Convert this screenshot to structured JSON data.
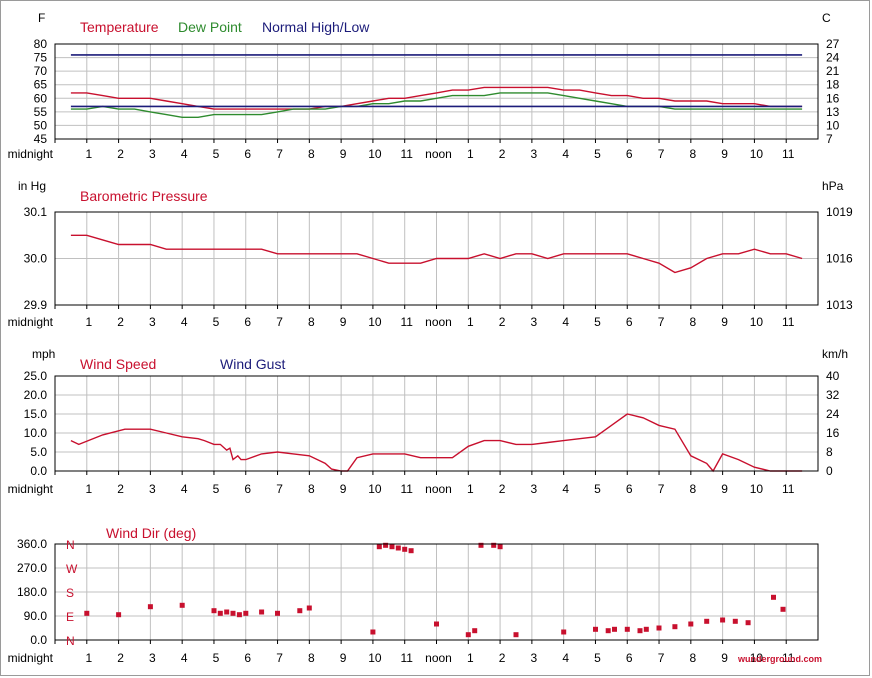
{
  "time_labels": [
    "midnight",
    "1",
    "2",
    "3",
    "4",
    "5",
    "6",
    "7",
    "8",
    "9",
    "10",
    "11",
    "noon",
    "1",
    "2",
    "3",
    "4",
    "5",
    "6",
    "7",
    "8",
    "9",
    "10",
    "11"
  ],
  "brand": "wunderground.com",
  "colors": {
    "red": "#c8102e",
    "green": "#2e8b2e",
    "navy": "#1c1c7a",
    "grid": "#c0c0c0",
    "axis": "#000000"
  },
  "chart_data": [
    {
      "type": "line",
      "left_unit": "F",
      "right_unit": "C",
      "yticks_left": [
        "80",
        "75",
        "70",
        "65",
        "60",
        "55",
        "50",
        "45"
      ],
      "yticks_right": [
        "27",
        "24",
        "21",
        "18",
        "16",
        "13",
        "10",
        "7"
      ],
      "legend": [
        "Temperature",
        "Dew Point",
        "Normal High/Low"
      ],
      "ylim": [
        45,
        80
      ],
      "x": [
        0.5,
        1,
        1.5,
        2,
        2.5,
        3,
        3.5,
        4,
        4.5,
        5,
        5.5,
        6,
        6.5,
        7,
        7.5,
        8,
        8.5,
        9,
        9.5,
        10,
        10.5,
        11,
        11.5,
        12,
        12.5,
        13,
        13.5,
        14,
        14.5,
        15,
        15.5,
        16,
        16.5,
        17,
        17.5,
        18,
        18.5,
        19,
        19.5,
        20,
        20.5,
        21,
        21.5,
        22,
        22.5,
        23,
        23.5
      ],
      "series": [
        {
          "name": "Temperature",
          "color": "#c8102e",
          "values": [
            62,
            62,
            61,
            60,
            60,
            60,
            59,
            58,
            57,
            56,
            56,
            56,
            56,
            56,
            56,
            56,
            57,
            57,
            58,
            59,
            60,
            60,
            61,
            62,
            63,
            63,
            64,
            64,
            64,
            64,
            64,
            63,
            63,
            62,
            61,
            61,
            60,
            60,
            59,
            59,
            59,
            58,
            58,
            58,
            57,
            57,
            57
          ]
        },
        {
          "name": "Dew Point",
          "color": "#2e8b2e",
          "values": [
            56,
            56,
            57,
            56,
            56,
            55,
            54,
            53,
            53,
            54,
            54,
            54,
            54,
            55,
            56,
            56,
            56,
            57,
            57,
            58,
            58,
            59,
            59,
            60,
            61,
            61,
            61,
            62,
            62,
            62,
            62,
            61,
            60,
            59,
            58,
            57,
            57,
            57,
            56,
            56,
            56,
            56,
            56,
            56,
            56,
            56,
            56
          ]
        },
        {
          "name": "Normal High",
          "color": "#1c1c7a",
          "values": [
            76,
            76,
            76,
            76,
            76,
            76,
            76,
            76,
            76,
            76,
            76,
            76,
            76,
            76,
            76,
            76,
            76,
            76,
            76,
            76,
            76,
            76,
            76,
            76,
            76,
            76,
            76,
            76,
            76,
            76,
            76,
            76,
            76,
            76,
            76,
            76,
            76,
            76,
            76,
            76,
            76,
            76,
            76,
            76,
            76,
            76,
            76
          ]
        },
        {
          "name": "Normal Low",
          "color": "#1c1c7a",
          "values": [
            57,
            57,
            57,
            57,
            57,
            57,
            57,
            57,
            57,
            57,
            57,
            57,
            57,
            57,
            57,
            57,
            57,
            57,
            57,
            57,
            57,
            57,
            57,
            57,
            57,
            57,
            57,
            57,
            57,
            57,
            57,
            57,
            57,
            57,
            57,
            57,
            57,
            57,
            57,
            57,
            57,
            57,
            57,
            57,
            57,
            57,
            57
          ]
        }
      ]
    },
    {
      "type": "line",
      "title": "Barometric Pressure",
      "left_unit": "in Hg",
      "right_unit": "hPa",
      "yticks_left": [
        "30.1",
        "30.0",
        "29.9"
      ],
      "yticks_right": [
        "1019",
        "1016",
        "1013"
      ],
      "ylim": [
        29.9,
        30.1
      ],
      "x": [
        0.5,
        1,
        1.5,
        2,
        2.5,
        3,
        3.5,
        4,
        4.5,
        5,
        5.5,
        6,
        6.5,
        7,
        7.5,
        8,
        8.5,
        9,
        9.5,
        10,
        10.5,
        11,
        11.5,
        12,
        12.5,
        13,
        13.5,
        14,
        14.5,
        15,
        15.5,
        16,
        16.5,
        17,
        17.5,
        18,
        18.5,
        19,
        19.5,
        20,
        20.5,
        21,
        21.5,
        22,
        22.5,
        23,
        23.5
      ],
      "series": [
        {
          "name": "Barometric Pressure",
          "color": "#c8102e",
          "values": [
            30.05,
            30.05,
            30.04,
            30.03,
            30.03,
            30.03,
            30.02,
            30.02,
            30.02,
            30.02,
            30.02,
            30.02,
            30.02,
            30.01,
            30.01,
            30.01,
            30.01,
            30.01,
            30.01,
            30.0,
            29.99,
            29.99,
            29.99,
            30.0,
            30.0,
            30.0,
            30.01,
            30.0,
            30.01,
            30.01,
            30.0,
            30.01,
            30.01,
            30.01,
            30.01,
            30.01,
            30.0,
            29.99,
            29.97,
            29.98,
            30.0,
            30.01,
            30.01,
            30.02,
            30.01,
            30.01,
            30.0
          ]
        }
      ]
    },
    {
      "type": "line",
      "left_unit": "mph",
      "right_unit": "km/h",
      "yticks_left": [
        "25.0",
        "20.0",
        "15.0",
        "10.0",
        "5.0",
        "0.0"
      ],
      "yticks_right": [
        "40",
        "32",
        "24",
        "16",
        "8",
        "0"
      ],
      "legend": [
        "Wind Speed",
        "Wind Gust"
      ],
      "ylim": [
        0,
        25
      ],
      "x": [
        0.5,
        0.75,
        1.5,
        2.2,
        2.5,
        3,
        3.5,
        4,
        4.5,
        4.7,
        5,
        5.2,
        5.4,
        5.5,
        5.6,
        5.75,
        5.85,
        6,
        6.5,
        7,
        7.5,
        8,
        8.5,
        8.7,
        9,
        9.2,
        9.5,
        10,
        10.5,
        11,
        11.5,
        12,
        12.5,
        13,
        13.5,
        14,
        14.5,
        15,
        15.5,
        16,
        16.5,
        17,
        17.5,
        18,
        18.5,
        19,
        19.5,
        20,
        20.5,
        20.7,
        21,
        21.5,
        22,
        22.5,
        23,
        23.5
      ],
      "series": [
        {
          "name": "Wind Speed",
          "color": "#c8102e",
          "values": [
            8,
            7,
            9.5,
            11,
            11,
            11,
            10,
            9,
            8.5,
            8,
            7,
            7,
            5.5,
            6,
            3,
            4,
            3,
            3,
            4.5,
            5,
            4.5,
            4,
            2,
            0.5,
            0,
            0,
            3.5,
            4.5,
            4.5,
            4.5,
            3.5,
            3.5,
            3.5,
            6.5,
            8,
            8,
            7,
            7,
            7.5,
            8,
            8.5,
            9,
            12,
            15,
            14,
            12,
            11,
            4,
            2,
            0,
            4.5,
            3,
            1,
            0,
            0,
            0
          ]
        }
      ]
    },
    {
      "type": "scatter",
      "title": "Wind Dir (deg)",
      "yticks_left": [
        "360.0",
        "270.0",
        "180.0",
        "90.0",
        "0.0"
      ],
      "dir_labels": [
        "N",
        "W",
        "S",
        "E",
        "N"
      ],
      "ylim": [
        0,
        360
      ],
      "points": [
        [
          1,
          100
        ],
        [
          2,
          95
        ],
        [
          3,
          125
        ],
        [
          4,
          130
        ],
        [
          5,
          110
        ],
        [
          5.2,
          100
        ],
        [
          5.4,
          105
        ],
        [
          5.6,
          100
        ],
        [
          5.8,
          95
        ],
        [
          6,
          100
        ],
        [
          6.5,
          105
        ],
        [
          7,
          100
        ],
        [
          7.7,
          110
        ],
        [
          8,
          120
        ],
        [
          10,
          30
        ],
        [
          10.2,
          350
        ],
        [
          10.4,
          355
        ],
        [
          10.6,
          350
        ],
        [
          10.8,
          345
        ],
        [
          11,
          340
        ],
        [
          11.2,
          335
        ],
        [
          12,
          60
        ],
        [
          13,
          20
        ],
        [
          13.2,
          35
        ],
        [
          13.4,
          355
        ],
        [
          13.8,
          355
        ],
        [
          14,
          350
        ],
        [
          14.5,
          20
        ],
        [
          16,
          30
        ],
        [
          17,
          40
        ],
        [
          17.4,
          35
        ],
        [
          17.6,
          40
        ],
        [
          18,
          40
        ],
        [
          18.4,
          35
        ],
        [
          18.6,
          40
        ],
        [
          19,
          45
        ],
        [
          19.5,
          50
        ],
        [
          20,
          60
        ],
        [
          20.5,
          70
        ],
        [
          21,
          75
        ],
        [
          21.4,
          70
        ],
        [
          21.8,
          65
        ],
        [
          22.6,
          160
        ],
        [
          22.9,
          115
        ]
      ]
    }
  ]
}
